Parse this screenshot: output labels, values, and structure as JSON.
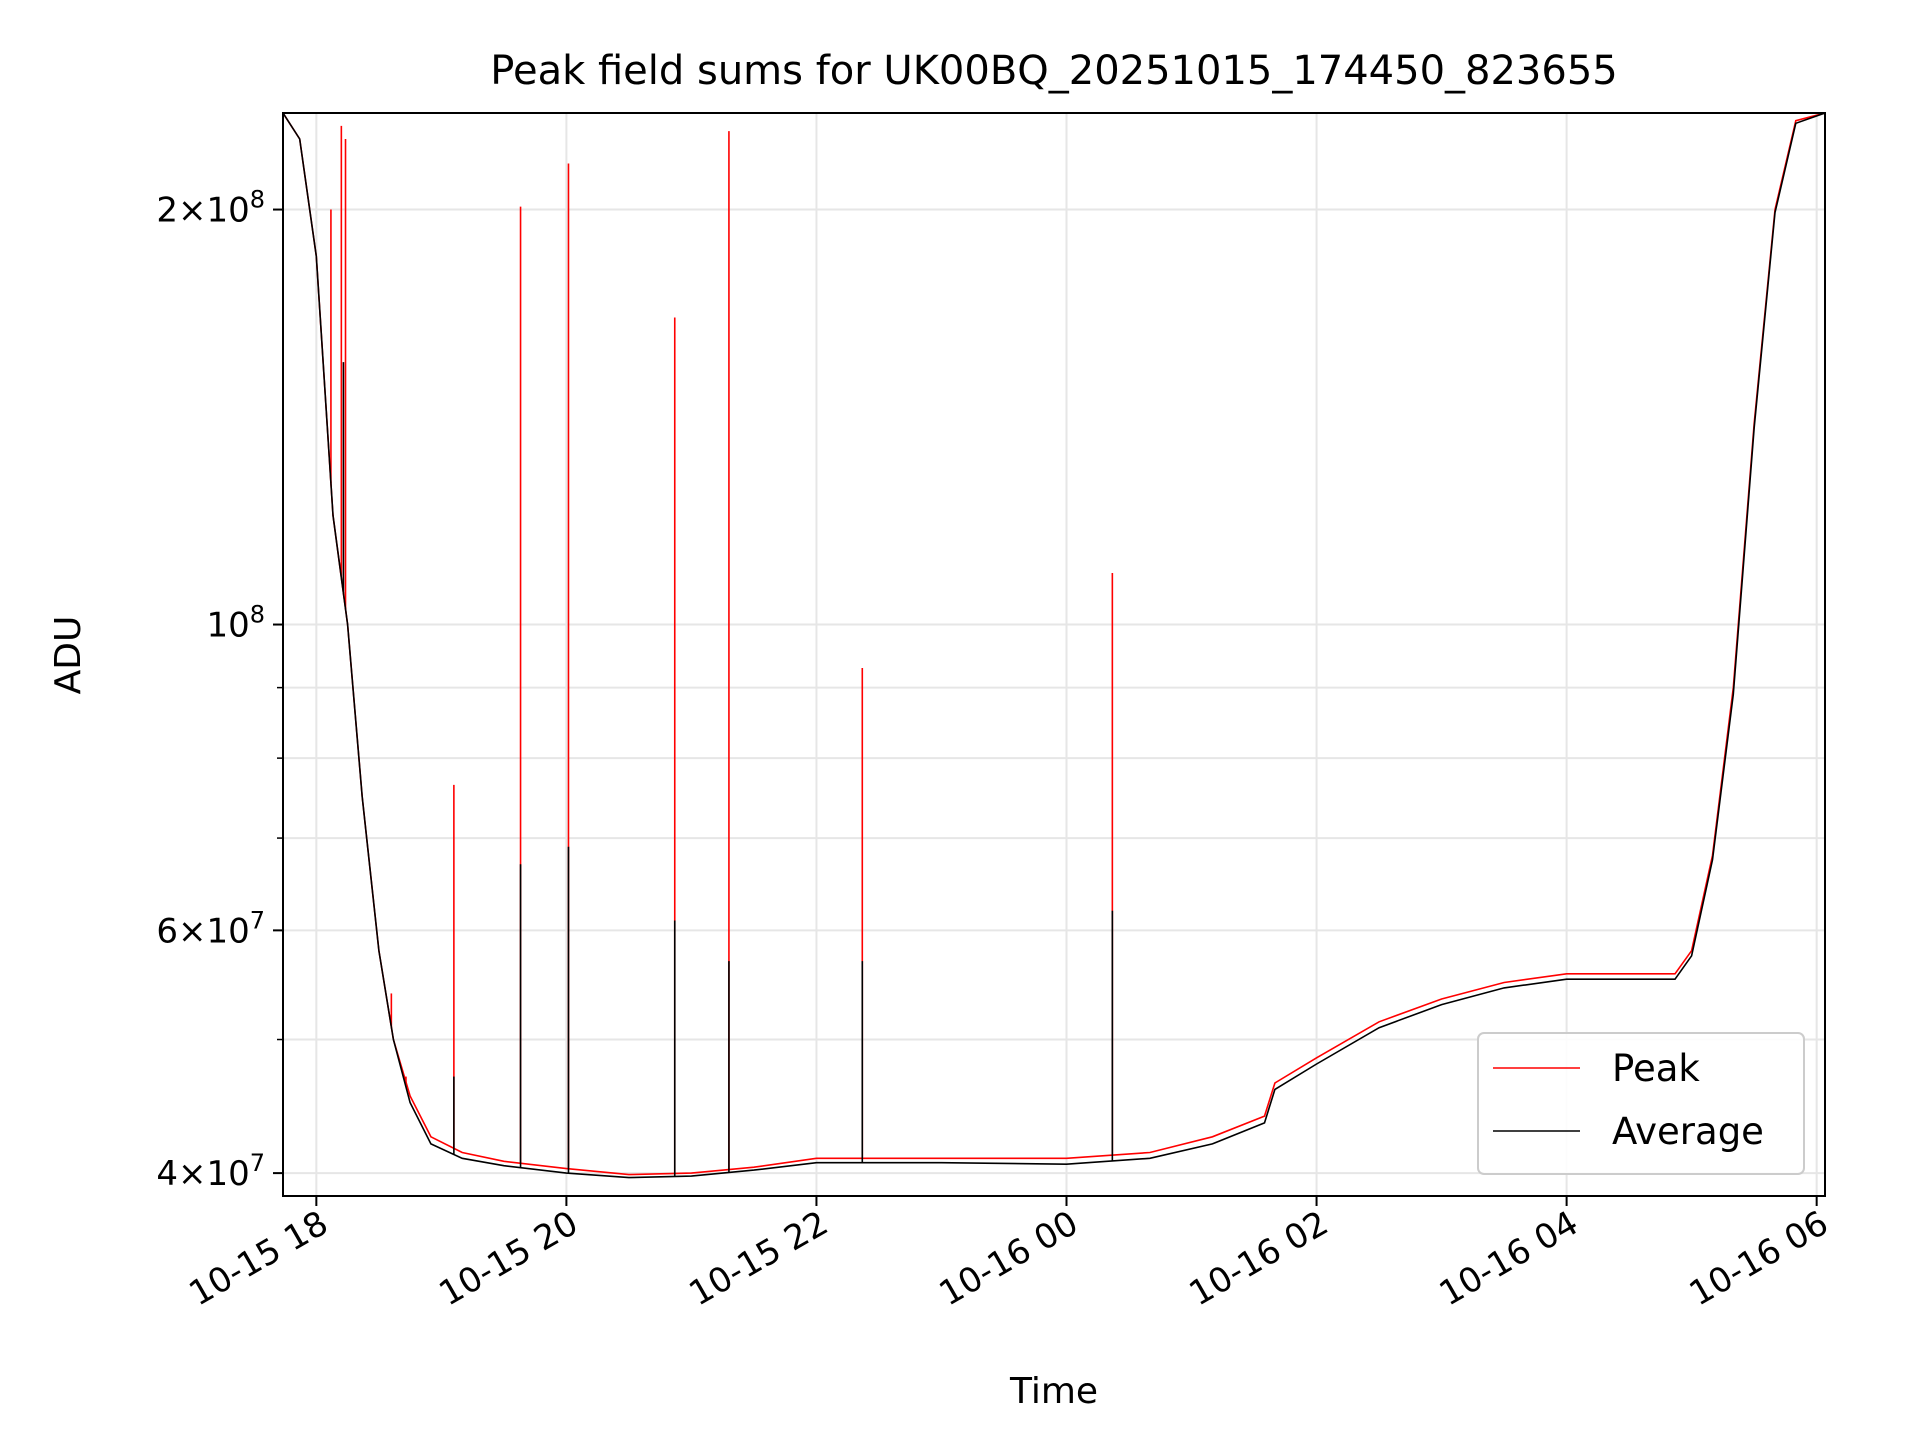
{
  "chart_data": {
    "type": "line",
    "title": "Peak field sums for UK00BQ_20251015_174450_823655",
    "xlabel": "Time",
    "ylabel": "ADU",
    "yscale": "log",
    "grid": true,
    "legend_position": "lower right",
    "xlim": [
      "2025-10-15T17:44",
      "2025-10-16T06:04"
    ],
    "ylim": [
      38500000,
      235000000
    ],
    "x_ticks": [
      {
        "t": "2025-10-15T18:00",
        "label": "10-15 18"
      },
      {
        "t": "2025-10-15T20:00",
        "label": "10-15 20"
      },
      {
        "t": "2025-10-15T22:00",
        "label": "10-15 22"
      },
      {
        "t": "2025-10-16T00:00",
        "label": "10-16 00"
      },
      {
        "t": "2025-10-16T02:00",
        "label": "10-16 02"
      },
      {
        "t": "2025-10-16T04:00",
        "label": "10-16 04"
      },
      {
        "t": "2025-10-16T06:00",
        "label": "10-16 06"
      }
    ],
    "y_major_ticks": [
      {
        "v": 40000000,
        "mantissa": "4",
        "exponent": "7"
      },
      {
        "v": 60000000,
        "mantissa": "6",
        "exponent": "7"
      },
      {
        "v": 100000000,
        "mantissa": "",
        "exponent": "8"
      },
      {
        "v": 200000000,
        "mantissa": "2",
        "exponent": "8"
      }
    ],
    "y_minor_ticks": [
      50000000,
      70000000,
      80000000,
      90000000
    ],
    "series": [
      {
        "name": "Peak",
        "color": "#ff0000",
        "baseline": [
          [
            "2025-10-15T17:44",
            235000000
          ],
          [
            "2025-10-15T17:52",
            225000000
          ],
          [
            "2025-10-15T18:00",
            185000000
          ],
          [
            "2025-10-15T18:08",
            120000000
          ],
          [
            "2025-10-15T18:15",
            100000000
          ],
          [
            "2025-10-15T18:22",
            75000000
          ],
          [
            "2025-10-15T18:30",
            58000000
          ],
          [
            "2025-10-15T18:37",
            50000000
          ],
          [
            "2025-10-15T18:45",
            45500000
          ],
          [
            "2025-10-15T18:55",
            42500000
          ],
          [
            "2025-10-15T19:10",
            41400000
          ],
          [
            "2025-10-15T19:30",
            40800000
          ],
          [
            "2025-10-15T20:00",
            40300000
          ],
          [
            "2025-10-15T20:30",
            39900000
          ],
          [
            "2025-10-15T21:00",
            40000000
          ],
          [
            "2025-10-15T21:30",
            40400000
          ],
          [
            "2025-10-15T22:00",
            41000000
          ],
          [
            "2025-10-15T23:00",
            41000000
          ],
          [
            "2025-10-16T00:00",
            41000000
          ],
          [
            "2025-10-16T00:40",
            41400000
          ],
          [
            "2025-10-16T01:10",
            42500000
          ],
          [
            "2025-10-16T01:35",
            44000000
          ],
          [
            "2025-10-16T01:40",
            46500000
          ],
          [
            "2025-10-16T02:00",
            48500000
          ],
          [
            "2025-10-16T02:30",
            51500000
          ],
          [
            "2025-10-16T03:00",
            53500000
          ],
          [
            "2025-10-16T03:30",
            55000000
          ],
          [
            "2025-10-16T04:00",
            55800000
          ],
          [
            "2025-10-16T04:30",
            55800000
          ],
          [
            "2025-10-16T04:52",
            55800000
          ],
          [
            "2025-10-16T05:00",
            58000000
          ],
          [
            "2025-10-16T05:10",
            68000000
          ],
          [
            "2025-10-16T05:20",
            90000000
          ],
          [
            "2025-10-16T05:30",
            140000000
          ],
          [
            "2025-10-16T05:40",
            200000000
          ],
          [
            "2025-10-16T05:50",
            232000000
          ],
          [
            "2025-10-16T06:04",
            235000000
          ]
        ],
        "spikes": [
          [
            "2025-10-15T18:07",
            200000000
          ],
          [
            "2025-10-15T18:12",
            230000000
          ],
          [
            "2025-10-15T18:14",
            225000000
          ],
          [
            "2025-10-15T18:36",
            54000000
          ],
          [
            "2025-10-15T18:43",
            47000000
          ],
          [
            "2025-10-15T19:06",
            76500000
          ],
          [
            "2025-10-15T19:38",
            201000000
          ],
          [
            "2025-10-15T20:01",
            216000000
          ],
          [
            "2025-10-15T20:52",
            167000000
          ],
          [
            "2025-10-15T21:18",
            228000000
          ],
          [
            "2025-10-15T22:22",
            93000000
          ],
          [
            "2025-10-16T00:22",
            109000000
          ]
        ]
      },
      {
        "name": "Average",
        "color": "#000000",
        "baseline": [
          [
            "2025-10-15T17:44",
            235000000
          ],
          [
            "2025-10-15T17:52",
            225000000
          ],
          [
            "2025-10-15T18:00",
            185000000
          ],
          [
            "2025-10-15T18:08",
            120000000
          ],
          [
            "2025-10-15T18:15",
            100000000
          ],
          [
            "2025-10-15T18:22",
            75000000
          ],
          [
            "2025-10-15T18:30",
            58000000
          ],
          [
            "2025-10-15T18:37",
            50000000
          ],
          [
            "2025-10-15T18:45",
            45000000
          ],
          [
            "2025-10-15T18:55",
            42000000
          ],
          [
            "2025-10-15T19:10",
            41000000
          ],
          [
            "2025-10-15T19:30",
            40500000
          ],
          [
            "2025-10-15T20:00",
            40000000
          ],
          [
            "2025-10-15T20:30",
            39700000
          ],
          [
            "2025-10-15T21:00",
            39800000
          ],
          [
            "2025-10-15T21:30",
            40200000
          ],
          [
            "2025-10-15T22:00",
            40700000
          ],
          [
            "2025-10-15T23:00",
            40700000
          ],
          [
            "2025-10-16T00:00",
            40600000
          ],
          [
            "2025-10-16T00:40",
            41000000
          ],
          [
            "2025-10-16T01:10",
            42000000
          ],
          [
            "2025-10-16T01:35",
            43500000
          ],
          [
            "2025-10-16T01:40",
            46000000
          ],
          [
            "2025-10-16T02:00",
            48000000
          ],
          [
            "2025-10-16T02:30",
            51000000
          ],
          [
            "2025-10-16T03:00",
            53000000
          ],
          [
            "2025-10-16T03:30",
            54500000
          ],
          [
            "2025-10-16T04:00",
            55300000
          ],
          [
            "2025-10-16T04:30",
            55300000
          ],
          [
            "2025-10-16T04:52",
            55300000
          ],
          [
            "2025-10-16T05:00",
            57500000
          ],
          [
            "2025-10-16T05:10",
            67500000
          ],
          [
            "2025-10-16T05:20",
            89000000
          ],
          [
            "2025-10-16T05:30",
            139000000
          ],
          [
            "2025-10-16T05:40",
            199000000
          ],
          [
            "2025-10-16T05:50",
            231000000
          ],
          [
            "2025-10-16T06:04",
            235000000
          ]
        ],
        "spikes": [
          [
            "2025-10-15T18:13",
            155000000
          ],
          [
            "2025-10-15T19:06",
            47000000
          ],
          [
            "2025-10-15T19:38",
            67000000
          ],
          [
            "2025-10-15T20:01",
            69000000
          ],
          [
            "2025-10-15T20:52",
            61000000
          ],
          [
            "2025-10-15T21:18",
            57000000
          ],
          [
            "2025-10-15T22:22",
            57000000
          ],
          [
            "2025-10-16T00:22",
            62000000
          ]
        ]
      }
    ]
  }
}
